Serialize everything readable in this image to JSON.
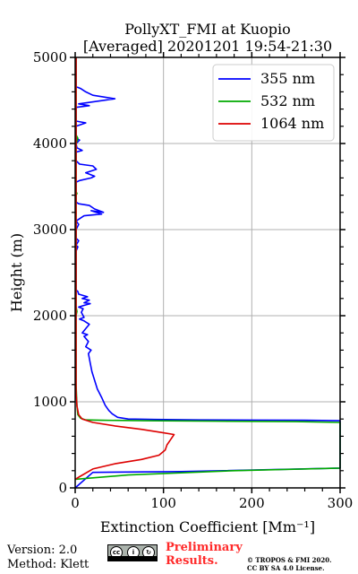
{
  "chart_data": {
    "type": "line",
    "title": "PollyXT_FMI at Kuopio",
    "subtitle": "[Averaged] 20201201 19:54-21:30",
    "xlabel": "Extinction Coefficient [Mm⁻¹]",
    "ylabel": "Height (m)",
    "xlim": [
      0,
      300
    ],
    "ylim": [
      0,
      5000
    ],
    "x_ticks": [
      0,
      100,
      200,
      300
    ],
    "y_ticks": [
      0,
      1000,
      2000,
      3000,
      4000,
      5000
    ],
    "grid": true,
    "legend_position": "top-right",
    "series": [
      {
        "name": "355 nm",
        "color": "#0000ff",
        "points": [
          [
            0,
            0
          ],
          [
            20,
            180
          ],
          [
            120,
            190
          ],
          [
            300,
            230
          ],
          [
            300,
            780
          ],
          [
            260,
            785
          ],
          [
            200,
            788
          ],
          [
            140,
            790
          ],
          [
            90,
            795
          ],
          [
            60,
            800
          ],
          [
            48,
            820
          ],
          [
            42,
            860
          ],
          [
            38,
            900
          ],
          [
            34,
            960
          ],
          [
            30,
            1050
          ],
          [
            25,
            1150
          ],
          [
            22,
            1250
          ],
          [
            19,
            1350
          ],
          [
            17,
            1450
          ],
          [
            15,
            1560
          ],
          [
            18,
            1600
          ],
          [
            12,
            1640
          ],
          [
            15,
            1700
          ],
          [
            10,
            1760
          ],
          [
            14,
            1780
          ],
          [
            8,
            1800
          ],
          [
            12,
            1850
          ],
          [
            16,
            1900
          ],
          [
            10,
            1940
          ],
          [
            5,
            1960
          ],
          [
            10,
            1980
          ],
          [
            7,
            2040
          ],
          [
            9,
            2080
          ],
          [
            4,
            2100
          ],
          [
            10,
            2120
          ],
          [
            17,
            2140
          ],
          [
            10,
            2150
          ],
          [
            16,
            2180
          ],
          [
            8,
            2200
          ],
          [
            14,
            2220
          ],
          [
            4,
            2250
          ],
          [
            3,
            2280
          ],
          [
            1,
            2300
          ],
          [
            1,
            2750
          ],
          [
            3,
            2800
          ],
          [
            1,
            2820
          ],
          [
            4,
            2870
          ],
          [
            1,
            2900
          ],
          [
            1,
            3000
          ],
          [
            4,
            3060
          ],
          [
            1,
            3100
          ],
          [
            10,
            3160
          ],
          [
            30,
            3180
          ],
          [
            18,
            3220
          ],
          [
            32,
            3200
          ],
          [
            22,
            3240
          ],
          [
            16,
            3280
          ],
          [
            4,
            3300
          ],
          [
            1,
            3320
          ],
          [
            1,
            3550
          ],
          [
            5,
            3570
          ],
          [
            18,
            3600
          ],
          [
            22,
            3620
          ],
          [
            12,
            3660
          ],
          [
            24,
            3700
          ],
          [
            20,
            3740
          ],
          [
            5,
            3760
          ],
          [
            1,
            3800
          ],
          [
            1,
            3900
          ],
          [
            8,
            3920
          ],
          [
            2,
            3950
          ],
          [
            1,
            4000
          ],
          [
            5,
            4040
          ],
          [
            1,
            4060
          ],
          [
            1,
            4200
          ],
          [
            12,
            4240
          ],
          [
            1,
            4260
          ],
          [
            1,
            4420
          ],
          [
            16,
            4440
          ],
          [
            4,
            4460
          ],
          [
            45,
            4520
          ],
          [
            20,
            4560
          ],
          [
            12,
            4600
          ],
          [
            6,
            4640
          ],
          [
            1,
            4660
          ],
          [
            1,
            5000
          ]
        ]
      },
      {
        "name": "532 nm",
        "color": "#00aa00",
        "points": [
          [
            0,
            100
          ],
          [
            60,
            150
          ],
          [
            180,
            200
          ],
          [
            300,
            230
          ],
          [
            300,
            760
          ],
          [
            250,
            770
          ],
          [
            160,
            775
          ],
          [
            80,
            780
          ],
          [
            30,
            785
          ],
          [
            12,
            790
          ],
          [
            6,
            810
          ],
          [
            3,
            850
          ],
          [
            2,
            950
          ],
          [
            1,
            1200
          ],
          [
            1,
            2000
          ],
          [
            2,
            2050
          ],
          [
            1,
            2100
          ],
          [
            1,
            3400
          ],
          [
            2,
            3420
          ],
          [
            1,
            3440
          ],
          [
            1,
            4000
          ],
          [
            3,
            4060
          ],
          [
            1,
            4100
          ],
          [
            1,
            5000
          ]
        ]
      },
      {
        "name": "1064 nm",
        "color": "#dd0000",
        "points": [
          [
            0,
            100
          ],
          [
            5,
            130
          ],
          [
            20,
            220
          ],
          [
            45,
            280
          ],
          [
            75,
            330
          ],
          [
            95,
            380
          ],
          [
            102,
            440
          ],
          [
            104,
            500
          ],
          [
            108,
            560
          ],
          [
            112,
            620
          ],
          [
            100,
            640
          ],
          [
            75,
            680
          ],
          [
            45,
            720
          ],
          [
            20,
            760
          ],
          [
            8,
            800
          ],
          [
            4,
            850
          ],
          [
            2,
            950
          ],
          [
            1,
            1100
          ],
          [
            1,
            5000
          ]
        ]
      }
    ]
  },
  "footer": {
    "version": "Version: 2.0",
    "method": "Method: Klett",
    "preliminary_line1": "Preliminary",
    "preliminary_line2": "Results.",
    "copyright_line1": "© TROPOS & FMI 2020.",
    "copyright_line2": "CC BY SA 4.0 License."
  }
}
